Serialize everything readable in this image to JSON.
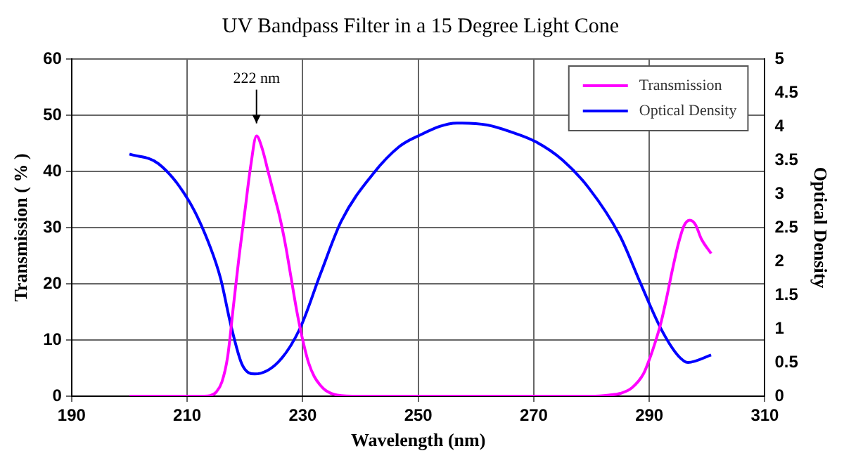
{
  "chart_data": {
    "type": "line",
    "title": "UV Bandpass Filter in a 15 Degree Light Cone",
    "xlabel": "Wavelength (nm)",
    "ylabel": "Transmission ( % )",
    "y2label": "Optical Density",
    "xlim": [
      190,
      310
    ],
    "xticks": [
      190,
      210,
      230,
      250,
      270,
      290,
      310
    ],
    "ylim": [
      0,
      60
    ],
    "yticks": [
      0,
      10,
      20,
      30,
      40,
      50,
      60
    ],
    "y2lim": [
      0,
      5
    ],
    "y2ticks": [
      0,
      0.5,
      1,
      1.5,
      2,
      2.5,
      3,
      3.5,
      4,
      4.5,
      5
    ],
    "grid": true,
    "legend": "top right",
    "marker": "none",
    "line_style": "solid",
    "annotations": [
      "222 nm"
    ],
    "series": [
      {
        "name": "Transmission",
        "color": "#ff00ff",
        "x": [
          200,
          205,
          210,
          213,
          214,
          215,
          216,
          217,
          218,
          219,
          220,
          221,
          222,
          223,
          224,
          225,
          226,
          227,
          228,
          229,
          230,
          231,
          232,
          233,
          234,
          236,
          240,
          250,
          260,
          270,
          280,
          283,
          285,
          287,
          289,
          290,
          291,
          292,
          293,
          294,
          295,
          296,
          297,
          298,
          299,
          300.7
        ],
        "values": [
          0,
          0,
          0,
          0,
          0.1,
          0.7,
          2.5,
          7,
          16,
          25,
          33,
          41,
          46.3,
          44,
          40,
          36,
          32,
          27,
          21,
          15,
          10,
          6,
          3.5,
          2,
          1,
          0.2,
          0,
          0,
          0,
          0,
          0,
          0.2,
          0.5,
          1.5,
          4,
          6.5,
          9.5,
          13,
          17.5,
          22.5,
          27,
          30.3,
          31.3,
          30.5,
          28,
          25.4
        ]
      },
      {
        "name": "Optical Density",
        "color": "#0000ff",
        "axis": "y2",
        "x": [
          200,
          205,
          210.4,
          214,
          215.8,
          217.6,
          219.5,
          221.7,
          225.8,
          229.5,
          233.1,
          236.7,
          242.2,
          246.7,
          249.5,
          256.7,
          257.6,
          262,
          266,
          270.4,
          275,
          279.5,
          284.9,
          288.5,
          291.9,
          294.9,
          296.7,
          300.7
        ],
        "values": [
          3.59,
          3.45,
          2.88,
          2.21,
          1.74,
          1.04,
          0.47,
          0.33,
          0.51,
          1.0,
          1.82,
          2.6,
          3.3,
          3.7,
          3.84,
          4.05,
          4.05,
          4.02,
          3.92,
          3.77,
          3.5,
          3.09,
          2.38,
          1.67,
          1.02,
          0.61,
          0.5,
          0.61
        ]
      }
    ]
  }
}
